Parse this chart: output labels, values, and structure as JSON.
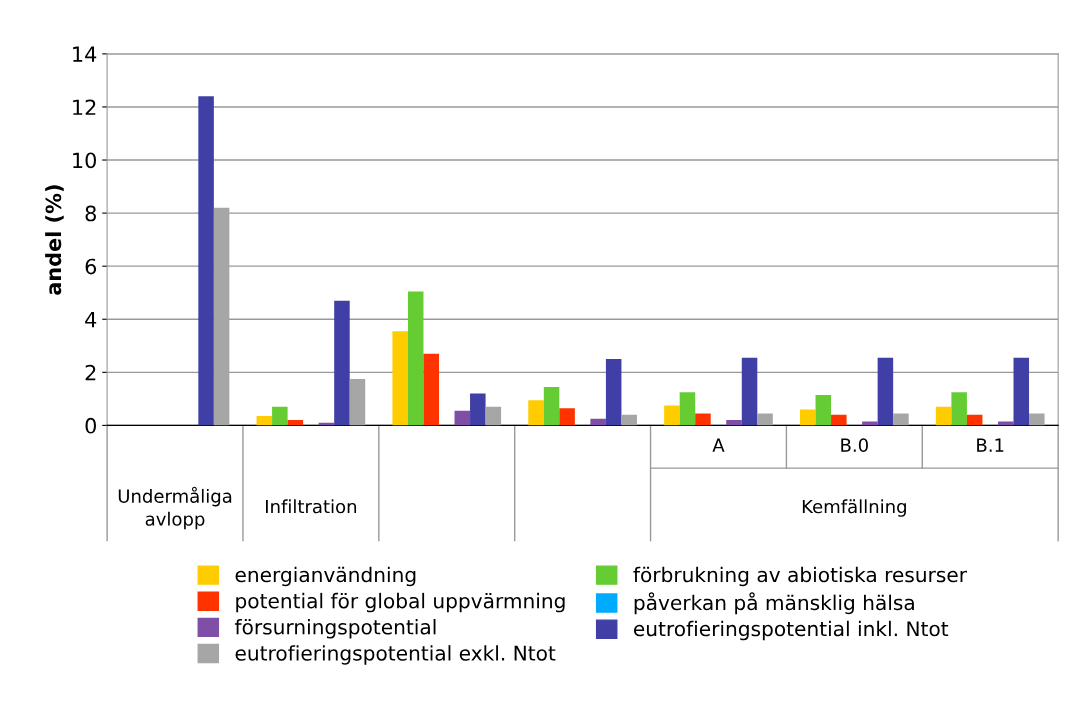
{
  "chart_data": {
    "type": "bar",
    "ylabel": "andel (%)",
    "categories": [
      "Undermåliga avlopp",
      "Infiltration",
      null,
      null,
      "A",
      "B.0",
      "B.1"
    ],
    "annotations": [
      "Kemfällning"
    ],
    "series": [
      {
        "name": "energianvändning",
        "color": "#ffcc00",
        "values": [
          0,
          0.35,
          3.55,
          0.95,
          0.75,
          0.6,
          0.7
        ]
      },
      {
        "name": "förbrukning av abiotiska resurser",
        "color": "#66cc33",
        "values": [
          0,
          0.7,
          5.05,
          1.45,
          1.25,
          1.15,
          1.25
        ]
      },
      {
        "name": "potential för global uppvärmning",
        "color": "#ff3300",
        "values": [
          0,
          0.2,
          2.7,
          0.65,
          0.45,
          0.4,
          0.4
        ]
      },
      {
        "name": "påverkan på mänsklig hälsa",
        "color": "#00aaff",
        "values": [
          0,
          0,
          0,
          0,
          0,
          0,
          0
        ]
      },
      {
        "name": "försurningspotential",
        "color": "#7f4fa8",
        "values": [
          0,
          0.1,
          0.55,
          0.25,
          0.2,
          0.15,
          0.15
        ]
      },
      {
        "name": "eutrofieringspotential inkl. Ntot",
        "color": "#3f3fa5",
        "values": [
          12.4,
          4.7,
          1.2,
          2.5,
          2.55,
          2.55,
          2.55
        ]
      },
      {
        "name": "eutrofieringspotential exkl. Ntot",
        "color": "#a6a6a6",
        "values": [
          8.2,
          1.75,
          0.7,
          0.4,
          0.45,
          0.45,
          0.45
        ]
      }
    ],
    "ylim": [
      0,
      14
    ],
    "yticks": [
      0,
      2,
      4,
      6,
      8,
      10,
      12,
      14
    ],
    "grid": "y",
    "legend": "bottom"
  }
}
